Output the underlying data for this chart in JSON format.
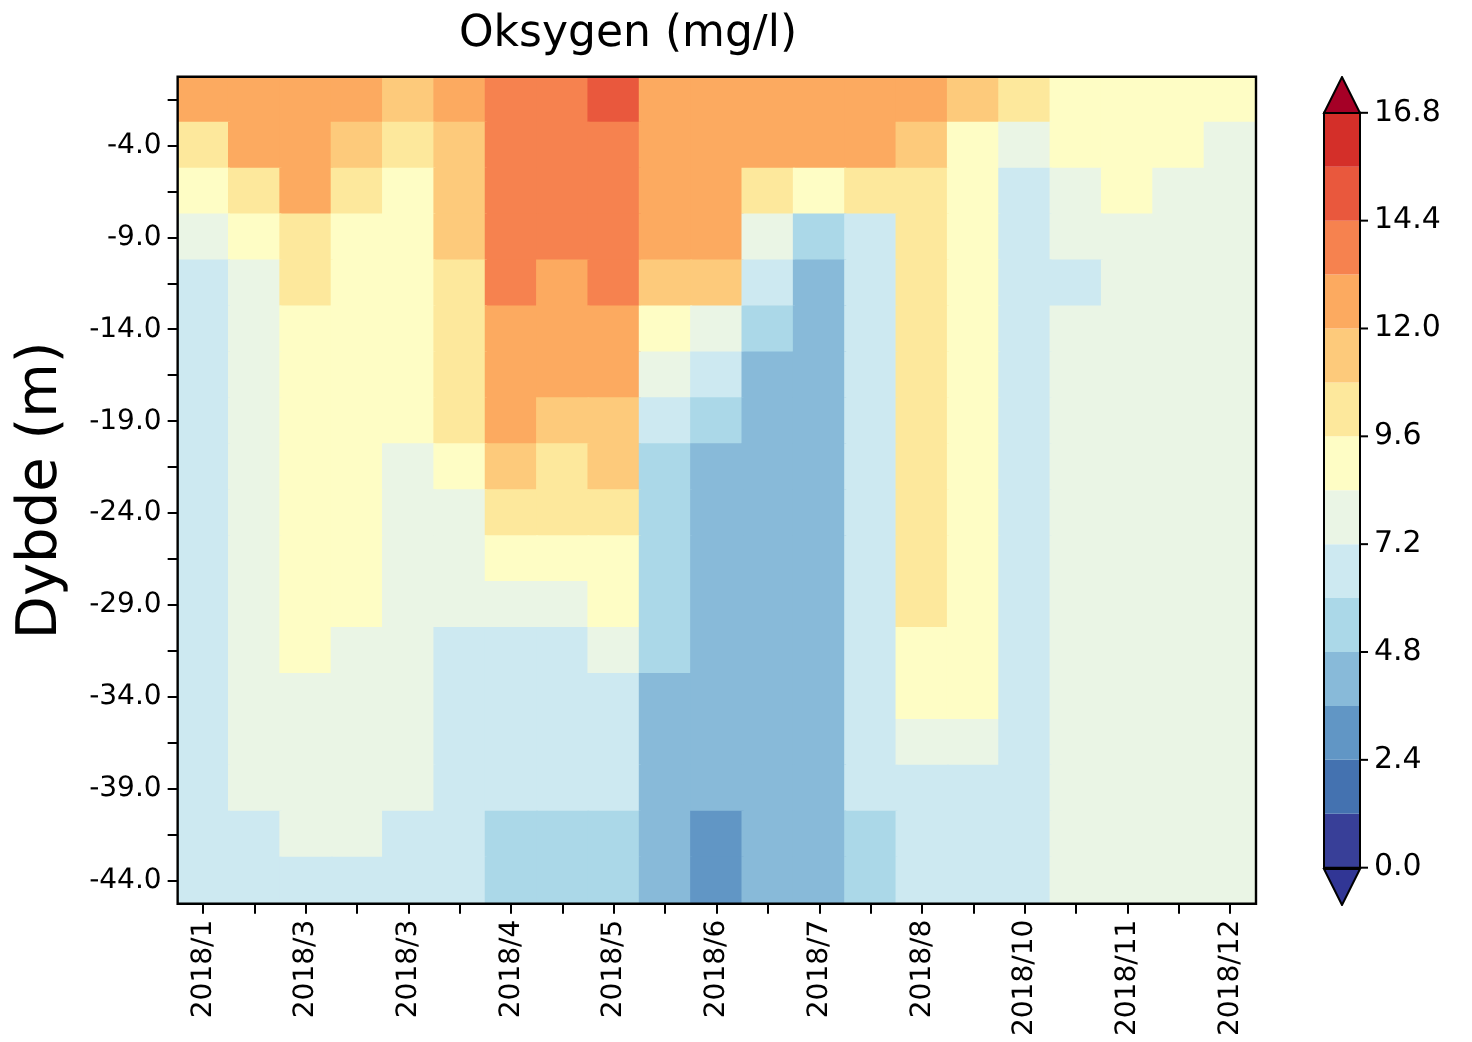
{
  "chart_data": {
    "type": "heatmap",
    "title": "Oksygen (mg/l)",
    "ylabel": "Dybde (m)",
    "categories": [
      "2018/1",
      null,
      "2018/3",
      null,
      "2018/3",
      null,
      "2018/4",
      null,
      "2018/5",
      null,
      "2018/6",
      null,
      "2018/7",
      null,
      "2018/8",
      null,
      "2018/10",
      null,
      "2018/11",
      null,
      "2018/12"
    ],
    "y_categories": [
      null,
      "-4.0",
      null,
      "-9.0",
      null,
      "-14.0",
      null,
      "-19.0",
      null,
      "-24.0",
      null,
      "-29.0",
      null,
      "-34.0",
      null,
      "-39.0",
      null,
      "-44.0"
    ],
    "cells": [
      [
        12.6,
        12.6,
        12.6,
        12.6,
        11.4,
        12.6,
        13.8,
        13.8,
        15.0,
        12.6,
        12.6,
        12.6,
        12.6,
        12.6,
        12.6,
        11.4,
        10.2,
        9.0,
        9.0,
        9.0,
        9.0
      ],
      [
        10.2,
        12.6,
        12.6,
        11.4,
        10.2,
        11.4,
        13.8,
        13.8,
        13.8,
        12.6,
        12.6,
        12.6,
        12.6,
        12.6,
        11.4,
        9.0,
        7.8,
        9.0,
        9.0,
        9.0,
        7.8
      ],
      [
        9.0,
        10.2,
        12.6,
        10.2,
        9.0,
        11.4,
        13.8,
        13.8,
        13.8,
        12.6,
        12.6,
        10.2,
        9.0,
        10.2,
        10.2,
        9.0,
        6.6,
        7.8,
        9.0,
        7.8,
        7.8
      ],
      [
        7.8,
        9.0,
        10.2,
        9.0,
        9.0,
        11.4,
        13.8,
        13.8,
        13.8,
        12.6,
        12.6,
        7.8,
        5.4,
        6.6,
        10.2,
        9.0,
        6.6,
        7.8,
        7.8,
        7.8,
        7.8
      ],
      [
        6.6,
        7.8,
        10.2,
        9.0,
        9.0,
        10.2,
        13.8,
        12.6,
        13.8,
        11.4,
        11.4,
        6.6,
        4.2,
        6.6,
        10.2,
        9.0,
        6.6,
        6.6,
        7.8,
        7.8,
        7.8
      ],
      [
        6.6,
        7.8,
        9.0,
        9.0,
        9.0,
        10.2,
        12.6,
        12.6,
        12.6,
        9.0,
        7.8,
        5.4,
        4.2,
        6.6,
        10.2,
        9.0,
        6.6,
        7.8,
        7.8,
        7.8,
        7.8
      ],
      [
        6.6,
        7.8,
        9.0,
        9.0,
        9.0,
        10.2,
        12.6,
        12.6,
        12.6,
        7.8,
        6.6,
        4.2,
        4.2,
        6.6,
        10.2,
        9.0,
        6.6,
        7.8,
        7.8,
        7.8,
        7.8
      ],
      [
        6.6,
        7.8,
        9.0,
        9.0,
        9.0,
        10.2,
        12.6,
        11.4,
        11.4,
        6.6,
        5.4,
        4.2,
        4.2,
        6.6,
        10.2,
        9.0,
        6.6,
        7.8,
        7.8,
        7.8,
        7.8
      ],
      [
        6.6,
        7.8,
        9.0,
        9.0,
        7.8,
        9.0,
        11.4,
        10.2,
        11.4,
        5.4,
        4.2,
        4.2,
        4.2,
        6.6,
        10.2,
        9.0,
        6.6,
        7.8,
        7.8,
        7.8,
        7.8
      ],
      [
        6.6,
        7.8,
        9.0,
        9.0,
        7.8,
        7.8,
        10.2,
        10.2,
        10.2,
        5.4,
        4.2,
        4.2,
        4.2,
        6.6,
        10.2,
        9.0,
        6.6,
        7.8,
        7.8,
        7.8,
        7.8
      ],
      [
        6.6,
        7.8,
        9.0,
        9.0,
        7.8,
        7.8,
        9.0,
        9.0,
        9.0,
        5.4,
        4.2,
        4.2,
        4.2,
        6.6,
        10.2,
        9.0,
        6.6,
        7.8,
        7.8,
        7.8,
        7.8
      ],
      [
        6.6,
        7.8,
        9.0,
        9.0,
        7.8,
        7.8,
        7.8,
        7.8,
        9.0,
        5.4,
        4.2,
        4.2,
        4.2,
        6.6,
        10.2,
        9.0,
        6.6,
        7.8,
        7.8,
        7.8,
        7.8
      ],
      [
        6.6,
        7.8,
        9.0,
        7.8,
        7.8,
        6.6,
        6.6,
        6.6,
        7.8,
        5.4,
        4.2,
        4.2,
        4.2,
        6.6,
        9.0,
        9.0,
        6.6,
        7.8,
        7.8,
        7.8,
        7.8
      ],
      [
        6.6,
        7.8,
        7.8,
        7.8,
        7.8,
        6.6,
        6.6,
        6.6,
        6.6,
        4.2,
        4.2,
        4.2,
        4.2,
        6.6,
        9.0,
        9.0,
        6.6,
        7.8,
        7.8,
        7.8,
        7.8
      ],
      [
        6.6,
        7.8,
        7.8,
        7.8,
        7.8,
        6.6,
        6.6,
        6.6,
        6.6,
        4.2,
        4.2,
        4.2,
        4.2,
        6.6,
        7.8,
        7.8,
        6.6,
        7.8,
        7.8,
        7.8,
        7.8
      ],
      [
        6.6,
        7.8,
        7.8,
        7.8,
        7.8,
        6.6,
        6.6,
        6.6,
        6.6,
        4.2,
        4.2,
        4.2,
        4.2,
        6.6,
        6.6,
        6.6,
        6.6,
        7.8,
        7.8,
        7.8,
        7.8
      ],
      [
        6.6,
        6.6,
        7.8,
        7.8,
        6.6,
        6.6,
        5.4,
        5.4,
        5.4,
        4.2,
        3.0,
        4.2,
        4.2,
        5.4,
        6.6,
        6.6,
        6.6,
        7.8,
        7.8,
        7.8,
        7.8
      ],
      [
        6.6,
        6.6,
        6.6,
        6.6,
        6.6,
        6.6,
        5.4,
        5.4,
        5.4,
        4.2,
        3.0,
        4.2,
        4.2,
        5.4,
        6.6,
        6.6,
        6.6,
        7.8,
        7.8,
        7.8,
        7.8
      ]
    ],
    "clim": [
      0,
      16.8
    ],
    "cticks": [
      {
        "value": 0,
        "label": "0.0"
      },
      2.4,
      4.8,
      7.2,
      9.6,
      {
        "value": 12,
        "label": "12.0"
      },
      14.4,
      16.8
    ]
  }
}
